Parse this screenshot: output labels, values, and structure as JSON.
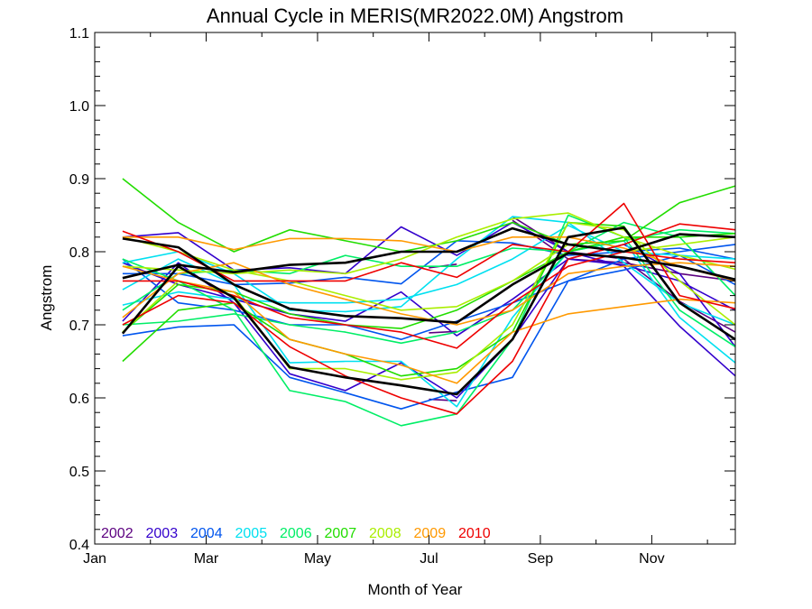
{
  "chart_data": {
    "type": "line",
    "title": "Annual Cycle in MERIS(MR2022.0M) Angstrom",
    "xlabel": "Month of Year",
    "ylabel": "Angstrom",
    "xlim": [
      1,
      12.5
    ],
    "ylim": [
      0.4,
      1.1
    ],
    "x_ticks": [
      {
        "value": 1,
        "label": "Jan"
      },
      {
        "value": 3,
        "label": "Mar"
      },
      {
        "value": 5,
        "label": "May"
      },
      {
        "value": 7,
        "label": "Jul"
      },
      {
        "value": 9,
        "label": "Sep"
      },
      {
        "value": 11,
        "label": "Nov"
      }
    ],
    "y_ticks": [
      {
        "value": 0.4,
        "label": "0.4"
      },
      {
        "value": 0.5,
        "label": "0.5"
      },
      {
        "value": 0.6,
        "label": "0.6"
      },
      {
        "value": 0.7,
        "label": "0.7"
      },
      {
        "value": 0.8,
        "label": "0.8"
      },
      {
        "value": 0.9,
        "label": "0.9"
      },
      {
        "value": 1.0,
        "label": "1.0"
      },
      {
        "value": 1.1,
        "label": "1.1"
      }
    ],
    "legend_position": "bottom-left",
    "legend": [
      {
        "label": "2002",
        "color": "#5c0080"
      },
      {
        "label": "2003",
        "color": "#3300cc"
      },
      {
        "label": "2004",
        "color": "#0055ee"
      },
      {
        "label": "2005",
        "color": "#00e0f0"
      },
      {
        "label": "2006",
        "color": "#00ee66"
      },
      {
        "label": "2007",
        "color": "#22dd00"
      },
      {
        "label": "2008",
        "color": "#aaee00"
      },
      {
        "label": "2009",
        "color": "#ff9900"
      },
      {
        "label": "2010",
        "color": "#ee0000"
      }
    ],
    "series": [
      {
        "color": "#5c0080",
        "x": [
          7,
          7.5
        ],
        "y": [
          0.689,
          0.691
        ]
      },
      {
        "color": "#5c0080",
        "x": [
          7,
          7.5
        ],
        "y": [
          0.778,
          0.783
        ]
      },
      {
        "color": "#5c0080",
        "x": [
          7,
          7.5
        ],
        "y": [
          0.598,
          0.596
        ]
      },
      {
        "color": "#5c0080",
        "x": [
          8.5,
          9.5,
          10.5,
          11.5,
          12.5
        ],
        "y": [
          0.848,
          0.8,
          0.79,
          0.732,
          0.69
        ]
      },
      {
        "color": "#5c0080",
        "x": [
          8.5,
          9.5,
          10.5,
          11.5,
          12.5
        ],
        "y": [
          0.843,
          0.79,
          0.785,
          0.77,
          0.76
        ]
      },
      {
        "color": "#3300cc",
        "x": [
          1.5,
          2.5,
          3.5,
          4.5,
          5.5,
          6.5,
          7.5,
          8.5,
          9.5,
          10.5,
          11.5,
          12.5
        ],
        "y": [
          0.82,
          0.826,
          0.775,
          0.778,
          0.77,
          0.834,
          0.795,
          0.84,
          0.8,
          0.78,
          0.698,
          0.63
        ]
      },
      {
        "color": "#3300cc",
        "x": [
          1.5,
          2.5,
          3.5,
          4.5,
          5.5,
          6.5,
          7.5,
          8.5,
          9.5,
          10.5,
          11.5,
          12.5
        ],
        "y": [
          0.785,
          0.755,
          0.735,
          0.715,
          0.705,
          0.745,
          0.685,
          0.735,
          0.79,
          0.782,
          0.76,
          0.72
        ]
      },
      {
        "color": "#3300cc",
        "x": [
          1.5,
          2.5,
          3.5,
          4.5,
          5.5,
          6.5,
          7.5,
          8.5,
          9.5,
          10.5,
          11.5,
          12.5
        ],
        "y": [
          0.705,
          0.785,
          0.73,
          0.633,
          0.61,
          0.648,
          0.6,
          0.68,
          0.79,
          0.81,
          0.77,
          0.67
        ]
      },
      {
        "color": "#0055ee",
        "x": [
          1.5,
          2.5,
          3.5,
          4.5,
          5.5,
          6.5,
          7.5,
          8.5,
          9.5,
          10.5,
          11.5,
          12.5
        ],
        "y": [
          0.685,
          0.697,
          0.7,
          0.628,
          0.607,
          0.585,
          0.608,
          0.628,
          0.76,
          0.775,
          0.795,
          0.755
        ]
      },
      {
        "color": "#0055ee",
        "x": [
          1.5,
          2.5,
          3.5,
          4.5,
          5.5,
          6.5,
          7.5,
          8.5,
          9.5,
          10.5,
          11.5,
          12.5
        ],
        "y": [
          0.79,
          0.73,
          0.72,
          0.7,
          0.7,
          0.68,
          0.705,
          0.73,
          0.76,
          0.79,
          0.8,
          0.81
        ]
      },
      {
        "color": "#0055ee",
        "x": [
          1.5,
          2.5,
          3.5,
          4.5,
          5.5,
          6.5,
          7.5,
          8.5,
          9.5,
          10.5,
          11.5,
          12.5
        ],
        "y": [
          0.77,
          0.77,
          0.755,
          0.757,
          0.765,
          0.756,
          0.815,
          0.812,
          0.795,
          0.8,
          0.805,
          0.79
        ]
      },
      {
        "color": "#00e0f0",
        "x": [
          1.5,
          2.5,
          3.5,
          4.5,
          5.5,
          6.5,
          7.5,
          8.5,
          9.5,
          10.5,
          11.5,
          12.5
        ],
        "y": [
          0.748,
          0.79,
          0.755,
          0.648,
          0.65,
          0.65,
          0.588,
          0.71,
          0.8,
          0.815,
          0.71,
          0.648
        ]
      },
      {
        "color": "#00e0f0",
        "x": [
          1.5,
          2.5,
          3.5,
          4.5,
          5.5,
          6.5,
          7.5,
          8.5,
          9.5,
          10.5,
          11.5,
          12.5
        ],
        "y": [
          0.785,
          0.8,
          0.77,
          0.72,
          0.718,
          0.725,
          0.79,
          0.848,
          0.84,
          0.785,
          0.73,
          0.7
        ]
      },
      {
        "color": "#00e0f0",
        "x": [
          1.5,
          2.5,
          3.5,
          4.5,
          5.5,
          6.5,
          7.5,
          8.5,
          9.5,
          10.5,
          11.5,
          12.5
        ],
        "y": [
          0.727,
          0.745,
          0.735,
          0.73,
          0.73,
          0.735,
          0.755,
          0.79,
          0.836,
          0.8,
          0.795,
          0.79
        ]
      },
      {
        "color": "#00ee66",
        "x": [
          1.5,
          2.5,
          3.5,
          4.5,
          5.5,
          6.5,
          7.5,
          8.5,
          9.5,
          10.5,
          11.5,
          12.5
        ],
        "y": [
          0.79,
          0.76,
          0.72,
          0.61,
          0.595,
          0.562,
          0.578,
          0.68,
          0.85,
          0.82,
          0.72,
          0.67
        ]
      },
      {
        "color": "#00ee66",
        "x": [
          1.5,
          2.5,
          3.5,
          4.5,
          5.5,
          6.5,
          7.5,
          8.5,
          9.5,
          10.5,
          11.5,
          12.5
        ],
        "y": [
          0.72,
          0.77,
          0.775,
          0.77,
          0.795,
          0.78,
          0.78,
          0.805,
          0.8,
          0.84,
          0.82,
          0.74
        ]
      },
      {
        "color": "#00ee66",
        "x": [
          1.5,
          2.5,
          3.5,
          4.5,
          5.5,
          6.5,
          7.5,
          8.5,
          9.5,
          10.5,
          11.5,
          12.5
        ],
        "y": [
          0.7,
          0.705,
          0.715,
          0.7,
          0.69,
          0.675,
          0.69,
          0.72,
          0.8,
          0.815,
          0.83,
          0.825
        ]
      },
      {
        "color": "#22dd00",
        "x": [
          1.5,
          2.5,
          3.5,
          4.5,
          5.5,
          6.5,
          7.5,
          8.5,
          9.5,
          10.5,
          11.5,
          12.5
        ],
        "y": [
          0.9,
          0.84,
          0.8,
          0.83,
          0.815,
          0.8,
          0.815,
          0.84,
          0.81,
          0.815,
          0.867,
          0.89
        ]
      },
      {
        "color": "#22dd00",
        "x": [
          1.5,
          2.5,
          3.5,
          4.5,
          5.5,
          6.5,
          7.5,
          8.5,
          9.5,
          10.5,
          11.5,
          12.5
        ],
        "y": [
          0.65,
          0.72,
          0.73,
          0.68,
          0.66,
          0.63,
          0.64,
          0.69,
          0.84,
          0.835,
          0.73,
          0.68
        ]
      },
      {
        "color": "#22dd00",
        "x": [
          1.5,
          2.5,
          3.5,
          4.5,
          5.5,
          6.5,
          7.5,
          8.5,
          9.5,
          10.5,
          11.5,
          12.5
        ],
        "y": [
          0.69,
          0.755,
          0.745,
          0.715,
          0.7,
          0.695,
          0.72,
          0.76,
          0.8,
          0.82,
          0.82,
          0.825
        ]
      },
      {
        "color": "#aaee00",
        "x": [
          1.5,
          2.5,
          3.5,
          4.5,
          5.5,
          6.5,
          7.5,
          8.5,
          9.5,
          10.5,
          11.5,
          12.5
        ],
        "y": [
          0.78,
          0.775,
          0.77,
          0.775,
          0.77,
          0.79,
          0.82,
          0.845,
          0.853,
          0.82,
          0.795,
          0.776
        ]
      },
      {
        "color": "#aaee00",
        "x": [
          1.5,
          2.5,
          3.5,
          4.5,
          5.5,
          6.5,
          7.5,
          8.5,
          9.5,
          10.5,
          11.5,
          12.5
        ],
        "y": [
          0.69,
          0.76,
          0.74,
          0.64,
          0.64,
          0.625,
          0.635,
          0.7,
          0.84,
          0.83,
          0.76,
          0.7
        ]
      },
      {
        "color": "#aaee00",
        "x": [
          1.5,
          2.5,
          3.5,
          4.5,
          5.5,
          6.5,
          7.5,
          8.5,
          9.5,
          10.5,
          11.5,
          12.5
        ],
        "y": [
          0.82,
          0.8,
          0.775,
          0.76,
          0.74,
          0.72,
          0.725,
          0.76,
          0.81,
          0.8,
          0.81,
          0.82
        ]
      },
      {
        "color": "#ff9900",
        "x": [
          1.5,
          2.5,
          3.5,
          4.5,
          5.5,
          6.5,
          7.5,
          8.5,
          9.5,
          10.5,
          11.5,
          12.5
        ],
        "y": [
          0.82,
          0.82,
          0.803,
          0.818,
          0.818,
          0.815,
          0.8,
          0.82,
          0.82,
          0.805,
          0.78,
          0.76
        ]
      },
      {
        "color": "#ff9900",
        "x": [
          1.5,
          2.5,
          3.5,
          4.5,
          5.5,
          6.5,
          7.5,
          8.5,
          9.5,
          10.5,
          11.5,
          12.5
        ],
        "y": [
          0.71,
          0.77,
          0.785,
          0.755,
          0.735,
          0.715,
          0.7,
          0.72,
          0.77,
          0.78,
          0.785,
          0.78
        ]
      },
      {
        "color": "#ff9900",
        "x": [
          1.5,
          2.5,
          3.5,
          4.5,
          5.5,
          6.5,
          7.5,
          8.5,
          9.5,
          10.5,
          11.5,
          12.5
        ],
        "y": [
          0.78,
          0.76,
          0.745,
          0.68,
          0.66,
          0.645,
          0.62,
          0.69,
          0.715,
          0.725,
          0.735,
          0.73
        ]
      },
      {
        "color": "#ee0000",
        "x": [
          1.5,
          2.5,
          3.5,
          4.5,
          5.5,
          6.5,
          7.5,
          8.5,
          9.5,
          10.5,
          11.5,
          12.5
        ],
        "y": [
          0.828,
          0.8,
          0.76,
          0.76,
          0.76,
          0.785,
          0.765,
          0.81,
          0.8,
          0.866,
          0.74,
          0.722
        ]
      },
      {
        "color": "#ee0000",
        "x": [
          1.5,
          2.5,
          3.5,
          4.5,
          5.5,
          6.5,
          7.5,
          8.5,
          9.5,
          10.5,
          11.5,
          12.5
        ],
        "y": [
          0.7,
          0.74,
          0.73,
          0.67,
          0.63,
          0.6,
          0.578,
          0.65,
          0.79,
          0.81,
          0.838,
          0.83
        ]
      },
      {
        "color": "#ee0000",
        "x": [
          1.5,
          2.5,
          3.5,
          4.5,
          5.5,
          6.5,
          7.5,
          8.5,
          9.5,
          10.5,
          11.5,
          12.5
        ],
        "y": [
          0.76,
          0.76,
          0.74,
          0.71,
          0.7,
          0.69,
          0.668,
          0.73,
          0.78,
          0.8,
          0.79,
          0.785
        ]
      },
      {
        "color": "#000000",
        "width": 2.6,
        "x": [
          1.5,
          2.5,
          3.5,
          4.5,
          5.5,
          6.5,
          7.5,
          8.5,
          9.5,
          10.5,
          11.5,
          12.5
        ],
        "y": [
          0.764,
          0.782,
          0.772,
          0.782,
          0.785,
          0.8,
          0.8,
          0.832,
          0.81,
          0.8,
          0.824,
          0.82
        ]
      },
      {
        "color": "#000000",
        "width": 2.6,
        "x": [
          1.5,
          2.5,
          3.5,
          4.5,
          5.5,
          6.5,
          7.5,
          8.5,
          9.5,
          10.5,
          11.5,
          12.5
        ],
        "y": [
          0.818,
          0.806,
          0.755,
          0.722,
          0.712,
          0.709,
          0.703,
          0.755,
          0.798,
          0.792,
          0.78,
          0.762
        ]
      },
      {
        "color": "#000000",
        "width": 2.6,
        "x": [
          1.5,
          2.5,
          3.5,
          4.5,
          5.5,
          6.5,
          7.5,
          8.5,
          9.5,
          10.5,
          11.5,
          12.5
        ],
        "y": [
          0.688,
          0.78,
          0.737,
          0.642,
          0.628,
          0.617,
          0.605,
          0.68,
          0.82,
          0.833,
          0.73,
          0.68
        ]
      }
    ]
  }
}
